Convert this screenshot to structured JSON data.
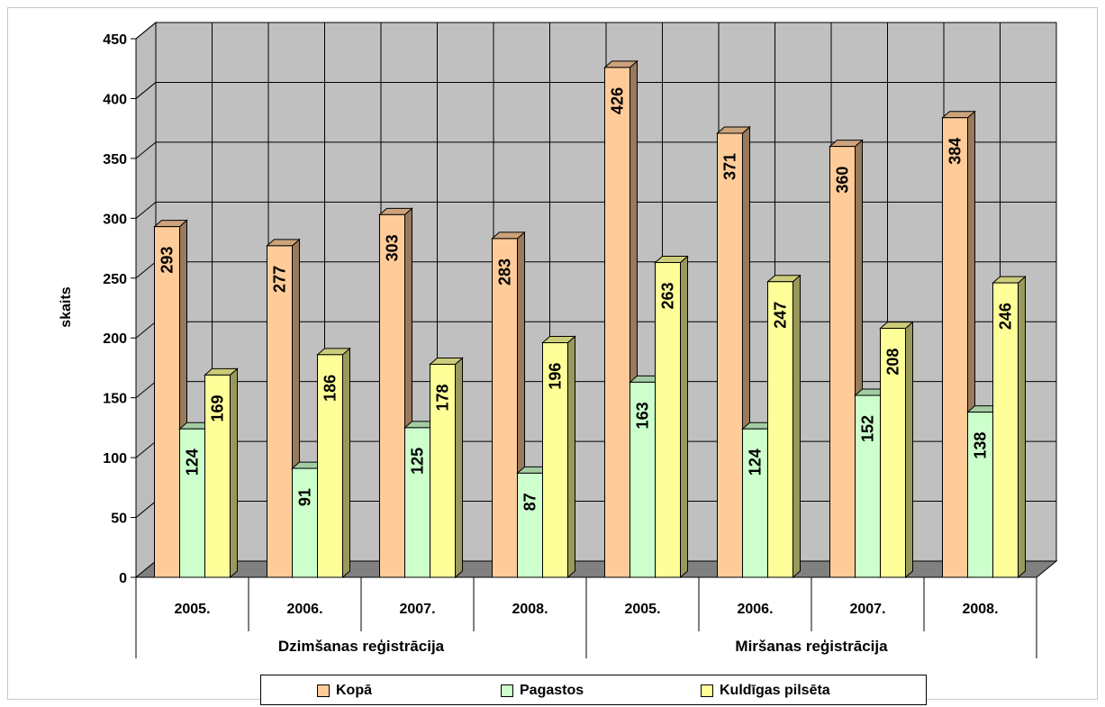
{
  "chart_data": {
    "type": "bar",
    "groups": [
      "Dzimšanas reģistrācija",
      "Miršanas reģistrācija"
    ],
    "categories": [
      "2005.",
      "2006.",
      "2007.",
      "2008.",
      "2005.",
      "2006.",
      "2007.",
      "2008."
    ],
    "series": [
      {
        "name": "Kopā",
        "color": "#ffcc99",
        "values": [
          293,
          277,
          303,
          283,
          426,
          371,
          360,
          384
        ]
      },
      {
        "name": "Pagastos",
        "color": "#ccffcc",
        "values": [
          124,
          91,
          125,
          87,
          163,
          124,
          152,
          138
        ]
      },
      {
        "name": "Kuldīgas pilsēta",
        "color": "#ffff99",
        "values": [
          169,
          186,
          178,
          196,
          263,
          247,
          208,
          246
        ]
      }
    ],
    "ylabel": "skaits",
    "ylim": [
      0,
      450
    ],
    "yticks": [
      0,
      50,
      100,
      150,
      200,
      250,
      300,
      350,
      400,
      450
    ],
    "grid": true,
    "legend_position": "bottom",
    "wall_color": "#c0c0c0",
    "floor_color": "#808080"
  }
}
